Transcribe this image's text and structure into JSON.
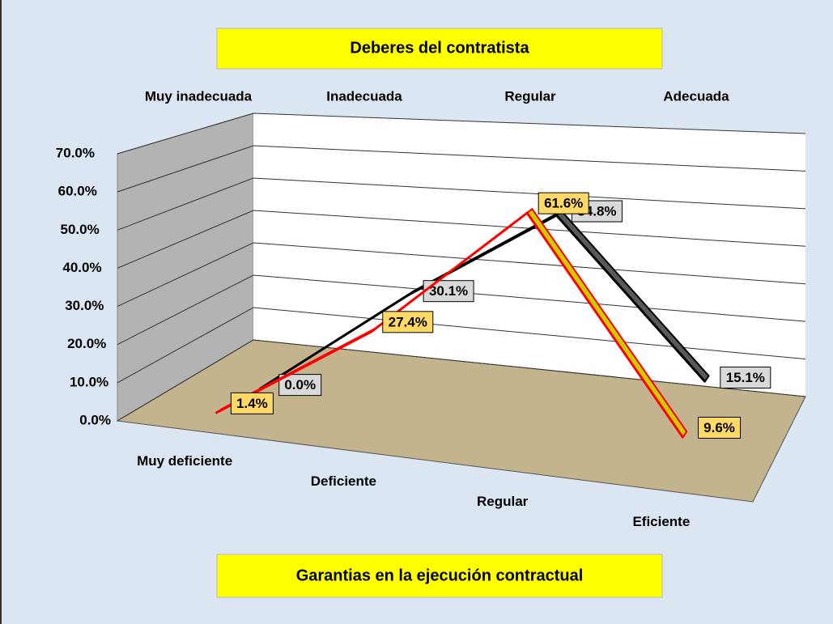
{
  "chart_data": {
    "type": "line3d",
    "categories": [
      "Muy deficiente",
      "Deficiente",
      "Regular",
      "Eficiente"
    ],
    "categories_back": [
      "Muy inadecuada",
      "Inadecuada",
      "Regular",
      "Adecuada"
    ],
    "series": [
      {
        "name": "Garantias en la ejecución contractual",
        "color": "#cccc00",
        "edge": "#ff0000",
        "label_fill": "#ffd966",
        "values": [
          1.4,
          27.4,
          61.6,
          9.6
        ],
        "value_labels": [
          "1.4%",
          "27.4%",
          "61.6%",
          "9.6%"
        ]
      },
      {
        "name": "Deberes del contratista",
        "color": "#595959",
        "edge": "#000000",
        "label_fill": "#d9d9d9",
        "values": [
          0.0,
          30.1,
          54.8,
          15.1
        ],
        "value_labels": [
          "0.0%",
          "30.1%",
          "54.8%",
          "15.1%"
        ]
      }
    ],
    "ylim": [
      0,
      70
    ],
    "yticks": [
      {
        "value": 0,
        "label": "0.0%"
      },
      {
        "value": 10,
        "label": "10.0%"
      },
      {
        "value": 20,
        "label": "20.0%"
      },
      {
        "value": 30,
        "label": "30.0%"
      },
      {
        "value": 40,
        "label": "40.0%"
      },
      {
        "value": 50,
        "label": "50.0%"
      },
      {
        "value": 60,
        "label": "60.0%"
      },
      {
        "value": 70,
        "label": "70.0%"
      }
    ],
    "grid": true
  }
}
